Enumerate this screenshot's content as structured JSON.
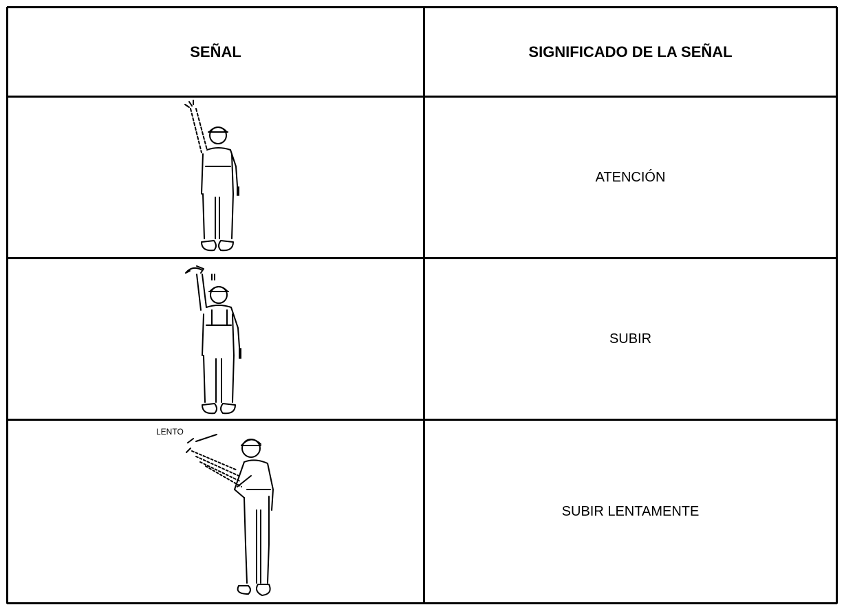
{
  "table": {
    "header": [
      "SEÑAL",
      "SIGNIFICADO DE LA SEÑAL"
    ],
    "rows": [
      {
        "meaning": "ATENCIÓN"
      },
      {
        "meaning": "SUBIR"
      },
      {
        "figure_text": "LENTO",
        "meaning": "SUBIR LENTAMENTE"
      }
    ]
  }
}
